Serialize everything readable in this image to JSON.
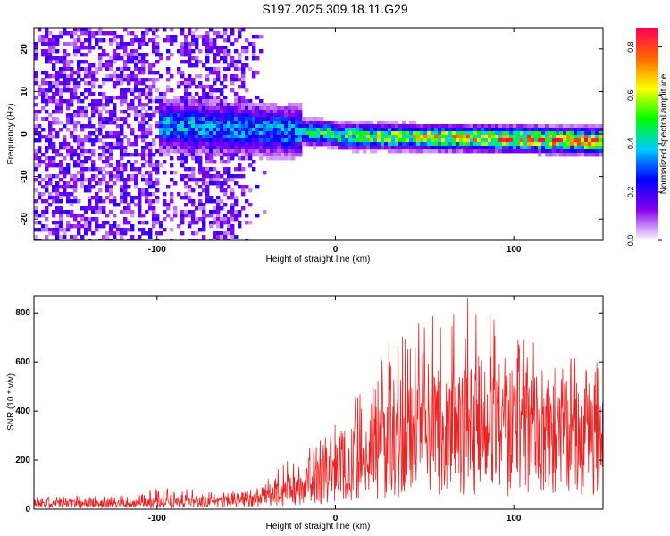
{
  "title": "S197.2025.309.18.11.G29",
  "chart_data": [
    {
      "type": "heatmap",
      "xlabel": "Height of straight line (km)",
      "ylabel": "Frequency (Hz)",
      "xlim": [
        -169,
        150
      ],
      "ylim": [
        -25,
        25
      ],
      "xticks": [
        -100,
        0,
        100
      ],
      "yticks": [
        -20,
        -10,
        0,
        10,
        20
      ],
      "colorbar": {
        "label": "Normalized spectral amplitude",
        "range": [
          0,
          0.88
        ],
        "ticks": [
          0.0,
          0.2,
          0.4,
          0.6,
          0.8
        ],
        "colormap": "rainbow",
        "stops": [
          "#ffffff",
          "#8800ee",
          "#0000ff",
          "#00ccff",
          "#00ff00",
          "#ffff00",
          "#ff6600",
          "#ff0055"
        ]
      },
      "features": [
        {
          "name": "noise",
          "x_range": [
            -169,
            -60
          ],
          "freq_spread": 25,
          "amplitude": 0.15
        },
        {
          "name": "signal-band",
          "x_range": [
            -100,
            150
          ],
          "center_freq_hz": [
            2,
            0
          ],
          "amplitude_max": 0.88
        }
      ],
      "grid": false
    },
    {
      "type": "line",
      "xlabel": "Height of straight line (km)",
      "ylabel": "SNR (10 * v/v)",
      "xlim": [
        -169,
        150
      ],
      "ylim": [
        0,
        870
      ],
      "xticks": [
        -100,
        0,
        100
      ],
      "yticks": [
        0,
        200,
        400,
        600,
        800
      ],
      "series": [
        {
          "color": "#ee2222",
          "envelope": {
            "x": [
              -169,
              -120,
              -100,
              -80,
              -60,
              -45,
              -30,
              -15,
              0,
              15,
              30,
              45,
              60,
              75,
              90,
              105,
              120,
              135,
              150
            ],
            "mean": [
              25,
              25,
              28,
              32,
              35,
              45,
              70,
              110,
              160,
              220,
              300,
              340,
              360,
              370,
              360,
              350,
              340,
              330,
              320
            ],
            "peak": [
              55,
              55,
              95,
              80,
              70,
              90,
              180,
              260,
              350,
              500,
              700,
              780,
              800,
              870,
              800,
              700,
              650,
              620,
              600
            ]
          }
        }
      ],
      "grid": false
    }
  ]
}
